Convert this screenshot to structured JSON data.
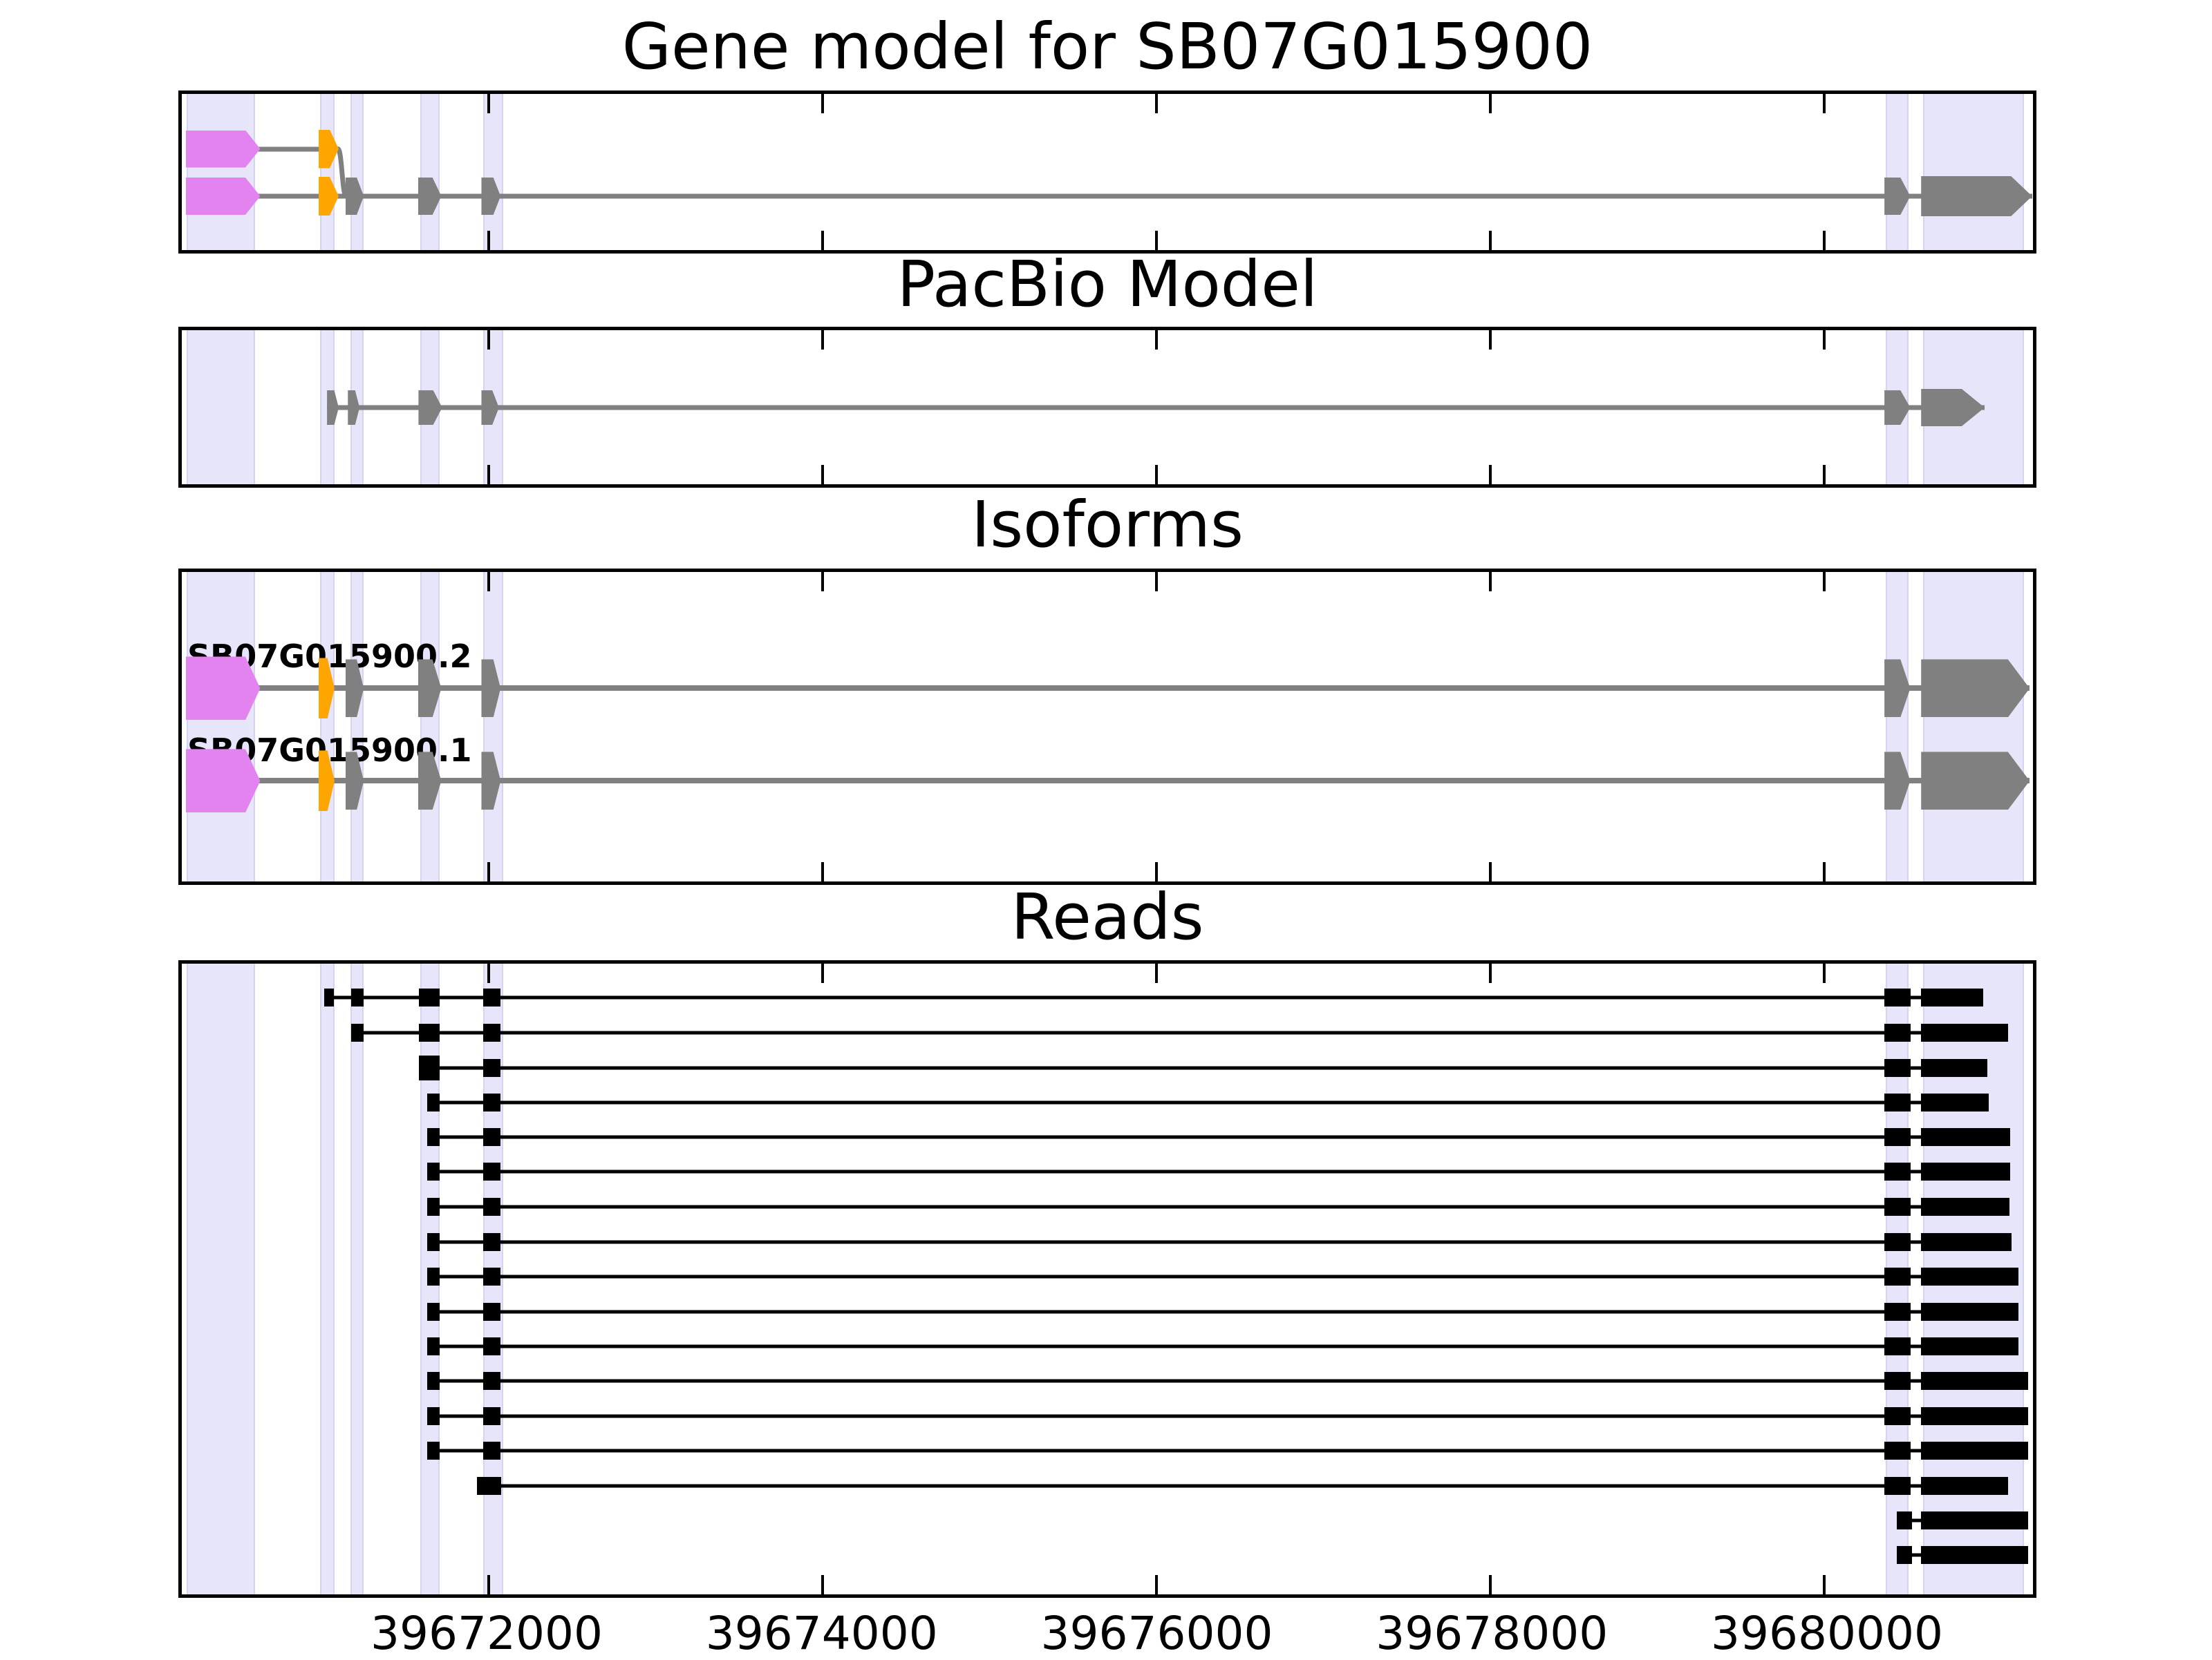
{
  "colors": {
    "background": "#ffffff",
    "panel_border": "#000000",
    "band_fill": "#e6e5f9",
    "band_edge": "#d5d4f0",
    "magenta": "#e283f0",
    "orange": "#ffa500",
    "gray": "#808080",
    "black": "#000000",
    "tick": "#000000"
  },
  "chart_data": {
    "type": "gene-model-tracks",
    "xlim": [
      39670160,
      39681250
    ],
    "x_ticks": [
      {
        "value": 39672000,
        "label": "39672000"
      },
      {
        "value": 39674000,
        "label": "39674000"
      },
      {
        "value": 39676000,
        "label": "39676000"
      },
      {
        "value": 39678000,
        "label": "39678000"
      },
      {
        "value": 39680000,
        "label": "39680000"
      }
    ],
    "highlight_regions": [
      {
        "start": 39670190,
        "end": 39670600
      },
      {
        "start": 39670990,
        "end": 39671075
      },
      {
        "start": 39671170,
        "end": 39671250
      },
      {
        "start": 39671590,
        "end": 39671705
      },
      {
        "start": 39671965,
        "end": 39672085
      },
      {
        "start": 39680370,
        "end": 39680505
      },
      {
        "start": 39680590,
        "end": 39681195
      }
    ],
    "panels": [
      {
        "id": "gene-model",
        "title": "Gene model for SB07G015900",
        "line_h": 7,
        "line_color": "gray",
        "connectors": [
          {
            "x1": 39671095,
            "y1": 0.352,
            "x2": 39671145,
            "y2": 0.655
          }
        ],
        "rows": [
          {
            "y": 0.352,
            "features": [
              {
                "s": 39670185,
                "e": 39670630,
                "h": 54,
                "color": "magenta",
                "tip": 0.8
              },
              {
                "s": 39670980,
                "e": 39671100,
                "h": 56,
                "color": "orange",
                "tip": 0.55
              }
            ]
          },
          {
            "y": 0.655,
            "features": [
              {
                "s": 39670185,
                "e": 39670630,
                "h": 54,
                "color": "magenta",
                "tip": 0.8
              },
              {
                "s": 39670980,
                "e": 39671100,
                "h": 56,
                "color": "orange",
                "tip": 0.55
              },
              {
                "s": 39671140,
                "e": 39671250,
                "h": 54,
                "color": "gray",
                "tip": 0.62
              },
              {
                "s": 39671575,
                "e": 39671715,
                "h": 54,
                "color": "gray",
                "tip": 0.62
              },
              {
                "s": 39671955,
                "e": 39672070,
                "h": 54,
                "color": "gray",
                "tip": 0.62
              },
              {
                "s": 39680360,
                "e": 39680515,
                "h": 54,
                "color": "gray",
                "tip": 0.62
              },
              {
                "s": 39680580,
                "e": 39681245,
                "h": 58,
                "color": "gray",
                "tip": 0.81
              }
            ]
          }
        ]
      },
      {
        "id": "pacbio",
        "title": "PacBio Model",
        "line_h": 7,
        "line_color": "gray",
        "rows": [
          {
            "y": 0.502,
            "features": [
              {
                "s": 39671030,
                "e": 39671100,
                "h": 50,
                "color": "gray",
                "tip": 0.62
              },
              {
                "s": 39671155,
                "e": 39671225,
                "h": 50,
                "color": "gray",
                "tip": 0.62
              },
              {
                "s": 39671578,
                "e": 39671720,
                "h": 50,
                "color": "gray",
                "tip": 0.62
              },
              {
                "s": 39671955,
                "e": 39672060,
                "h": 50,
                "color": "gray",
                "tip": 0.62
              },
              {
                "s": 39680360,
                "e": 39680515,
                "h": 50,
                "color": "gray",
                "tip": 0.62
              },
              {
                "s": 39680580,
                "e": 39680960,
                "h": 54,
                "color": "gray",
                "tip": 0.64
              }
            ]
          }
        ]
      },
      {
        "id": "isoforms",
        "title": "Isoforms",
        "line_h": 8,
        "line_color": "gray",
        "rows": [
          {
            "y": 0.376,
            "label": "SB07G015900.2",
            "label_y": 0.272,
            "features": [
              {
                "s": 39670185,
                "e": 39670630,
                "h": 92,
                "color": "magenta",
                "tip": 0.8
              },
              {
                "s": 39670980,
                "e": 39671075,
                "h": 88,
                "color": "orange",
                "tip": 0.55
              },
              {
                "s": 39671140,
                "e": 39671250,
                "h": 84,
                "color": "gray",
                "tip": 0.62
              },
              {
                "s": 39671575,
                "e": 39671715,
                "h": 84,
                "color": "gray",
                "tip": 0.62
              },
              {
                "s": 39671955,
                "e": 39672070,
                "h": 84,
                "color": "gray",
                "tip": 0.62
              },
              {
                "s": 39680360,
                "e": 39680515,
                "h": 84,
                "color": "gray",
                "tip": 0.62
              },
              {
                "s": 39680580,
                "e": 39681230,
                "h": 84,
                "color": "gray",
                "tip": 0.8
              }
            ]
          },
          {
            "y": 0.675,
            "label": "SB07G015900.1",
            "label_y": 0.575,
            "features": [
              {
                "s": 39670185,
                "e": 39670630,
                "h": 92,
                "color": "magenta",
                "tip": 0.8
              },
              {
                "s": 39670980,
                "e": 39671075,
                "h": 88,
                "color": "orange",
                "tip": 0.55
              },
              {
                "s": 39671140,
                "e": 39671250,
                "h": 84,
                "color": "gray",
                "tip": 0.62
              },
              {
                "s": 39671575,
                "e": 39671715,
                "h": 84,
                "color": "gray",
                "tip": 0.62
              },
              {
                "s": 39671955,
                "e": 39672070,
                "h": 84,
                "color": "gray",
                "tip": 0.62
              },
              {
                "s": 39680360,
                "e": 39680515,
                "h": 84,
                "color": "gray",
                "tip": 0.62
              },
              {
                "s": 39680580,
                "e": 39681230,
                "h": 84,
                "color": "gray",
                "tip": 0.8
              }
            ]
          }
        ]
      },
      {
        "id": "reads",
        "title": "Reads",
        "line_h": 5,
        "line_color": "black",
        "rows": [
          {
            "y": 0.054,
            "features": [
              {
                "s": 39671015,
                "e": 39671070,
                "h": 26,
                "color": "black"
              },
              {
                "s": 39671175,
                "e": 39671250,
                "h": 26,
                "color": "black"
              },
              {
                "s": 39671580,
                "e": 39671705,
                "h": 26,
                "color": "black"
              },
              {
                "s": 39671965,
                "e": 39672070,
                "h": 26,
                "color": "black"
              },
              {
                "s": 39680360,
                "e": 39680515,
                "h": 26,
                "color": "black"
              },
              {
                "s": 39680580,
                "e": 39680950,
                "h": 26,
                "color": "black"
              }
            ]
          },
          {
            "y": 0.109,
            "features": [
              {
                "s": 39671175,
                "e": 39671250,
                "h": 26,
                "color": "black"
              },
              {
                "s": 39671580,
                "e": 39671705,
                "h": 26,
                "color": "black"
              },
              {
                "s": 39671965,
                "e": 39672070,
                "h": 26,
                "color": "black"
              },
              {
                "s": 39680360,
                "e": 39680515,
                "h": 26,
                "color": "black"
              },
              {
                "s": 39680580,
                "e": 39681100,
                "h": 26,
                "color": "black"
              }
            ]
          },
          {
            "y": 0.165,
            "features": [
              {
                "s": 39671580,
                "e": 39671705,
                "h": 36,
                "color": "black"
              },
              {
                "s": 39671965,
                "e": 39672070,
                "h": 26,
                "color": "black"
              },
              {
                "s": 39680360,
                "e": 39680515,
                "h": 26,
                "color": "black"
              },
              {
                "s": 39680580,
                "e": 39680975,
                "h": 26,
                "color": "black"
              }
            ]
          },
          {
            "y": 0.22,
            "features": [
              {
                "s": 39671630,
                "e": 39671705,
                "h": 26,
                "color": "black"
              },
              {
                "s": 39671965,
                "e": 39672070,
                "h": 26,
                "color": "black"
              },
              {
                "s": 39680360,
                "e": 39680515,
                "h": 26,
                "color": "black"
              },
              {
                "s": 39680580,
                "e": 39680985,
                "h": 26,
                "color": "black"
              }
            ]
          },
          {
            "y": 0.275,
            "features": [
              {
                "s": 39671630,
                "e": 39671705,
                "h": 26,
                "color": "black"
              },
              {
                "s": 39671965,
                "e": 39672070,
                "h": 26,
                "color": "black"
              },
              {
                "s": 39680360,
                "e": 39680515,
                "h": 26,
                "color": "black"
              },
              {
                "s": 39680580,
                "e": 39681115,
                "h": 26,
                "color": "black"
              }
            ]
          },
          {
            "y": 0.33,
            "features": [
              {
                "s": 39671630,
                "e": 39671705,
                "h": 26,
                "color": "black"
              },
              {
                "s": 39671965,
                "e": 39672070,
                "h": 26,
                "color": "black"
              },
              {
                "s": 39680360,
                "e": 39680515,
                "h": 26,
                "color": "black"
              },
              {
                "s": 39680580,
                "e": 39681115,
                "h": 26,
                "color": "black"
              }
            ]
          },
          {
            "y": 0.386,
            "features": [
              {
                "s": 39671630,
                "e": 39671705,
                "h": 26,
                "color": "black"
              },
              {
                "s": 39671965,
                "e": 39672070,
                "h": 26,
                "color": "black"
              },
              {
                "s": 39680360,
                "e": 39680515,
                "h": 26,
                "color": "black"
              },
              {
                "s": 39680580,
                "e": 39681110,
                "h": 26,
                "color": "black"
              }
            ]
          },
          {
            "y": 0.441,
            "features": [
              {
                "s": 39671630,
                "e": 39671705,
                "h": 26,
                "color": "black"
              },
              {
                "s": 39671965,
                "e": 39672070,
                "h": 26,
                "color": "black"
              },
              {
                "s": 39680360,
                "e": 39680515,
                "h": 26,
                "color": "black"
              },
              {
                "s": 39680580,
                "e": 39681120,
                "h": 26,
                "color": "black"
              }
            ]
          },
          {
            "y": 0.496,
            "features": [
              {
                "s": 39671630,
                "e": 39671705,
                "h": 26,
                "color": "black"
              },
              {
                "s": 39671965,
                "e": 39672070,
                "h": 26,
                "color": "black"
              },
              {
                "s": 39680360,
                "e": 39680515,
                "h": 26,
                "color": "black"
              },
              {
                "s": 39680580,
                "e": 39681165,
                "h": 26,
                "color": "black"
              }
            ]
          },
          {
            "y": 0.552,
            "features": [
              {
                "s": 39671630,
                "e": 39671705,
                "h": 26,
                "color": "black"
              },
              {
                "s": 39671965,
                "e": 39672070,
                "h": 26,
                "color": "black"
              },
              {
                "s": 39680360,
                "e": 39680515,
                "h": 26,
                "color": "black"
              },
              {
                "s": 39680580,
                "e": 39681165,
                "h": 26,
                "color": "black"
              }
            ]
          },
          {
            "y": 0.607,
            "features": [
              {
                "s": 39671630,
                "e": 39671705,
                "h": 26,
                "color": "black"
              },
              {
                "s": 39671965,
                "e": 39672070,
                "h": 26,
                "color": "black"
              },
              {
                "s": 39680360,
                "e": 39680515,
                "h": 26,
                "color": "black"
              },
              {
                "s": 39680580,
                "e": 39681165,
                "h": 26,
                "color": "black"
              }
            ]
          },
          {
            "y": 0.662,
            "features": [
              {
                "s": 39671630,
                "e": 39671705,
                "h": 26,
                "color": "black"
              },
              {
                "s": 39671965,
                "e": 39672070,
                "h": 26,
                "color": "black"
              },
              {
                "s": 39680360,
                "e": 39680515,
                "h": 26,
                "color": "black"
              },
              {
                "s": 39680580,
                "e": 39681220,
                "h": 26,
                "color": "black"
              }
            ]
          },
          {
            "y": 0.717,
            "features": [
              {
                "s": 39671630,
                "e": 39671705,
                "h": 26,
                "color": "black"
              },
              {
                "s": 39671965,
                "e": 39672070,
                "h": 26,
                "color": "black"
              },
              {
                "s": 39680360,
                "e": 39680515,
                "h": 26,
                "color": "black"
              },
              {
                "s": 39680580,
                "e": 39681220,
                "h": 26,
                "color": "black"
              }
            ]
          },
          {
            "y": 0.772,
            "features": [
              {
                "s": 39671630,
                "e": 39671705,
                "h": 26,
                "color": "black"
              },
              {
                "s": 39671965,
                "e": 39672070,
                "h": 26,
                "color": "black"
              },
              {
                "s": 39680360,
                "e": 39680515,
                "h": 26,
                "color": "black"
              },
              {
                "s": 39680580,
                "e": 39681220,
                "h": 26,
                "color": "black"
              }
            ]
          },
          {
            "y": 0.828,
            "features": [
              {
                "s": 39671930,
                "e": 39672075,
                "h": 26,
                "color": "black"
              },
              {
                "s": 39680360,
                "e": 39680515,
                "h": 26,
                "color": "black"
              },
              {
                "s": 39680580,
                "e": 39681100,
                "h": 26,
                "color": "black"
              }
            ]
          },
          {
            "y": 0.883,
            "features": [
              {
                "s": 39680435,
                "e": 39680525,
                "h": 26,
                "color": "black"
              },
              {
                "s": 39680580,
                "e": 39681220,
                "h": 26,
                "color": "black"
              }
            ]
          },
          {
            "y": 0.938,
            "features": [
              {
                "s": 39680435,
                "e": 39680525,
                "h": 26,
                "color": "black"
              },
              {
                "s": 39680580,
                "e": 39681220,
                "h": 26,
                "color": "black"
              }
            ]
          }
        ]
      }
    ]
  }
}
